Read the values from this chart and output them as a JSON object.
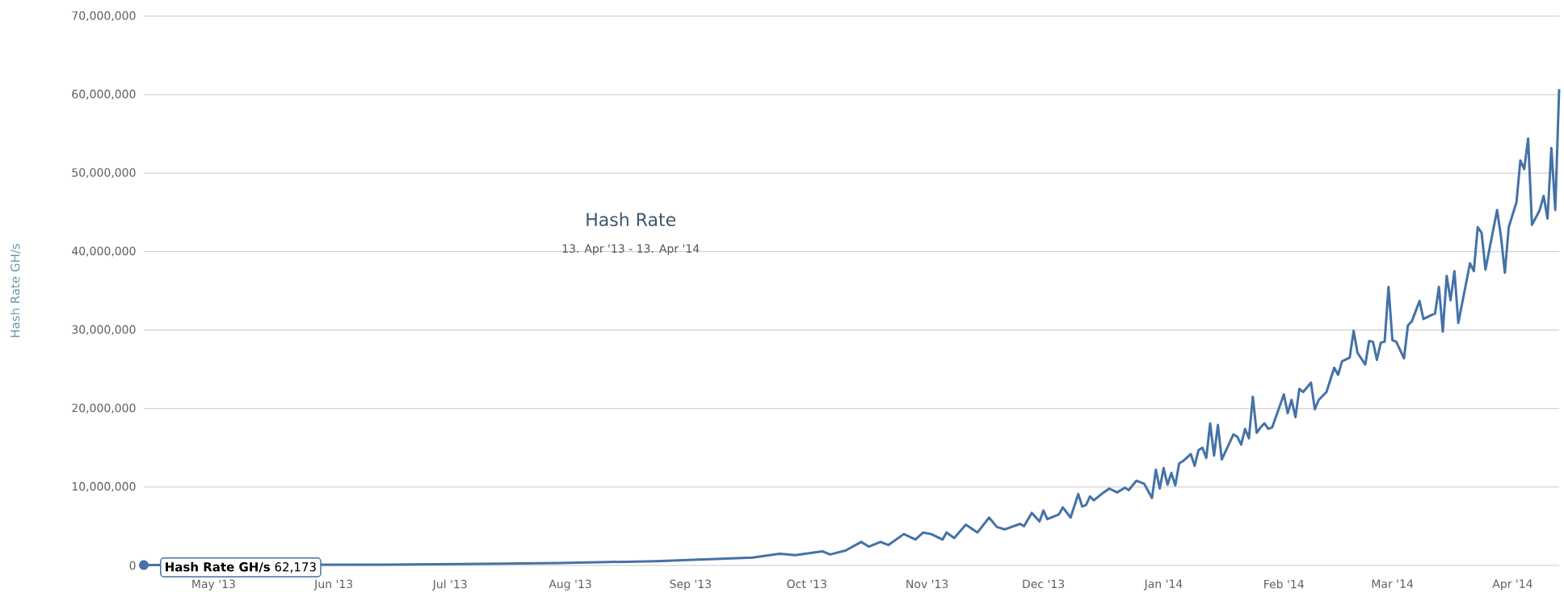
{
  "chart_data": {
    "type": "line",
    "title": "Hash Rate",
    "subtitle": "13. Apr '13 - 13. Apr '14",
    "ylabel": "Hash Rate GH/s",
    "color": "#4572a7",
    "grid": "y",
    "xlim": [
      "2013-04-13",
      "2014-04-13"
    ],
    "xticks": [
      {
        "value": "2013-05-01",
        "label": "May '13"
      },
      {
        "value": "2013-06-01",
        "label": "Jun '13"
      },
      {
        "value": "2013-07-01",
        "label": "Jul '13"
      },
      {
        "value": "2013-08-01",
        "label": "Aug '13"
      },
      {
        "value": "2013-09-01",
        "label": "Sep '13"
      },
      {
        "value": "2013-10-01",
        "label": "Oct '13"
      },
      {
        "value": "2013-11-01",
        "label": "Nov '13"
      },
      {
        "value": "2013-12-01",
        "label": "Dec '13"
      },
      {
        "value": "2014-01-01",
        "label": "Jan '14"
      },
      {
        "value": "2014-02-01",
        "label": "Feb '14"
      },
      {
        "value": "2014-03-01",
        "label": "Mar '14"
      },
      {
        "value": "2014-04-01",
        "label": "Apr '14"
      }
    ],
    "ylim": [
      0,
      70000000
    ],
    "yticks": [
      0,
      {
        "value": 10000000,
        "label": "10,000,000"
      },
      {
        "value": 20000000,
        "label": "20,000,000"
      },
      {
        "value": 30000000,
        "label": "30,000,000"
      },
      {
        "value": 40000000,
        "label": "40,000,000"
      },
      {
        "value": 50000000,
        "label": "50,000,000"
      },
      {
        "value": 60000000,
        "label": "60,000,000"
      },
      {
        "value": 70000000,
        "label": "70,000,000"
      }
    ],
    "x": [
      "2013-04-13",
      "2013-06-15",
      "2013-07-10",
      "2013-07-29",
      "2013-08-23",
      "2013-09-17",
      "2013-09-24",
      "2013-09-28",
      "2013-10-05",
      "2013-10-07",
      "2013-10-11",
      "2013-10-15",
      "2013-10-17",
      "2013-10-20",
      "2013-10-22",
      "2013-10-26",
      "2013-10-29",
      "2013-10-31",
      "2013-11-02",
      "2013-11-05",
      "2013-11-06",
      "2013-11-08",
      "2013-11-11",
      "2013-11-14",
      "2013-11-17",
      "2013-11-19",
      "2013-11-21",
      "2013-11-25",
      "2013-11-26",
      "2013-11-28",
      "2013-11-30",
      "2013-12-01",
      "2013-12-02",
      "2013-12-05",
      "2013-12-06",
      "2013-12-08",
      "2013-12-10",
      "2013-12-11",
      "2013-12-12",
      "2013-12-13",
      "2013-12-14",
      "2013-12-16",
      "2013-12-18",
      "2013-12-20",
      "2013-12-22",
      "2013-12-23",
      "2013-12-25",
      "2013-12-27",
      "2013-12-29",
      "2013-12-30",
      "2013-12-31",
      "2014-01-01",
      "2014-01-02",
      "2014-01-03",
      "2014-01-04",
      "2014-01-05",
      "2014-01-06",
      "2014-01-08",
      "2014-01-09",
      "2014-01-10",
      "2014-01-11",
      "2014-01-12",
      "2014-01-13",
      "2014-01-14",
      "2014-01-15",
      "2014-01-16",
      "2014-01-19",
      "2014-01-20",
      "2014-01-21",
      "2014-01-22",
      "2014-01-23",
      "2014-01-24",
      "2014-01-25",
      "2014-01-26",
      "2014-01-27",
      "2014-01-28",
      "2014-01-29",
      "2014-02-01",
      "2014-02-02",
      "2014-02-03",
      "2014-02-04",
      "2014-02-05",
      "2014-02-06",
      "2014-02-08",
      "2014-02-09",
      "2014-02-10",
      "2014-02-12",
      "2014-02-14",
      "2014-02-15",
      "2014-02-16",
      "2014-02-18",
      "2014-02-19",
      "2014-02-20",
      "2014-02-22",
      "2014-02-23",
      "2014-02-24",
      "2014-02-25",
      "2014-02-26",
      "2014-02-27",
      "2014-02-28",
      "2014-03-01",
      "2014-03-02",
      "2014-03-04",
      "2014-03-05",
      "2014-03-06",
      "2014-03-08",
      "2014-03-09",
      "2014-03-11",
      "2014-03-12",
      "2014-03-13",
      "2014-03-14",
      "2014-03-15",
      "2014-03-16",
      "2014-03-17",
      "2014-03-18",
      "2014-03-21",
      "2014-03-22",
      "2014-03-23",
      "2014-03-24",
      "2014-03-25",
      "2014-03-28",
      "2014-03-29",
      "2014-03-30",
      "2014-03-31",
      "2014-04-02",
      "2014-04-03",
      "2014-04-04",
      "2014-04-05",
      "2014-04-06",
      "2014-04-08",
      "2014-04-09",
      "2014-04-10",
      "2014-04-11",
      "2014-04-12",
      "2014-04-13"
    ],
    "values": [
      62173,
      100000,
      200000,
      300000,
      550000,
      1000000,
      1500000,
      1300000,
      1800000,
      1400000,
      1900000,
      3000000,
      2400000,
      3000000,
      2600000,
      4000000,
      3300000,
      4200000,
      4000000,
      3300000,
      4200000,
      3500000,
      5200000,
      4200000,
      6100000,
      4900000,
      4600000,
      5300000,
      5000000,
      6700000,
      5600000,
      7000000,
      5900000,
      6500000,
      7400000,
      6100000,
      9100000,
      7500000,
      7700000,
      8800000,
      8300000,
      9100000,
      9800000,
      9300000,
      9900000,
      9600000,
      10800000,
      10400000,
      8600000,
      12200000,
      9800000,
      12400000,
      10300000,
      11800000,
      10200000,
      13000000,
      13300000,
      14200000,
      12700000,
      14700000,
      15000000,
      13700000,
      18100000,
      14000000,
      17900000,
      13500000,
      16700000,
      16400000,
      15400000,
      17400000,
      16200000,
      21500000,
      16900000,
      17600000,
      18100000,
      17400000,
      17600000,
      21800000,
      19400000,
      21100000,
      18900000,
      22500000,
      22100000,
      23300000,
      19900000,
      21100000,
      22100000,
      25200000,
      24300000,
      26000000,
      26500000,
      29900000,
      27100000,
      25600000,
      28600000,
      28500000,
      26200000,
      28400000,
      28500000,
      35500000,
      28700000,
      28500000,
      26400000,
      30600000,
      31100000,
      33700000,
      31400000,
      31900000,
      32100000,
      35500000,
      29800000,
      36900000,
      33800000,
      37500000,
      30900000,
      38500000,
      37500000,
      43100000,
      42400000,
      37700000,
      45300000,
      41900000,
      37300000,
      43100000,
      46300000,
      51600000,
      50500000,
      54400000,
      43400000,
      45300000,
      47100000,
      44200000,
      53200000,
      45300000,
      60700000
    ],
    "annotations": [
      {
        "text": "**Hash Rate GH/s** 62,173",
        "x": "2013-04-13",
        "y": 62173
      }
    ]
  }
}
